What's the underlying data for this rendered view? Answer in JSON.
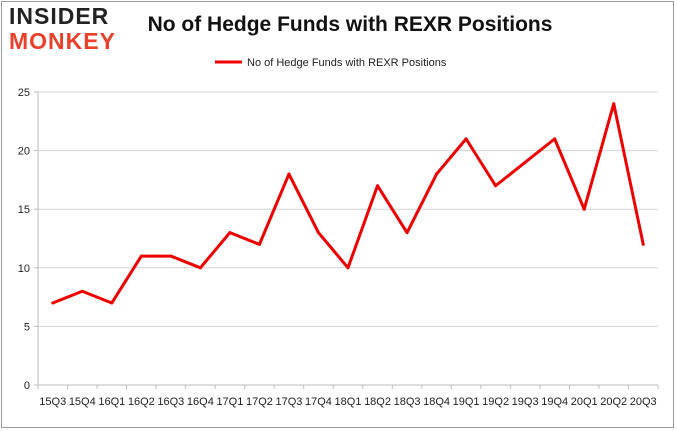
{
  "logo": {
    "line1": "INSIDER",
    "line2": "MONKEY"
  },
  "chart_data": {
    "type": "line",
    "title": "No of Hedge Funds with REXR Positions",
    "categories": [
      "15Q3",
      "15Q4",
      "16Q1",
      "16Q2",
      "16Q3",
      "16Q4",
      "17Q1",
      "17Q2",
      "17Q3",
      "17Q4",
      "18Q1",
      "18Q2",
      "18Q3",
      "18Q4",
      "19Q1",
      "19Q2",
      "19Q3",
      "19Q4",
      "20Q1",
      "20Q2",
      "20Q3"
    ],
    "series": [
      {
        "name": "No of Hedge Funds with REXR Positions",
        "values": [
          7,
          8,
          7,
          11,
          11,
          10,
          13,
          12,
          18,
          13,
          10,
          17,
          13,
          18,
          21,
          17,
          19,
          21,
          15,
          24,
          12
        ],
        "color": "#ee0000"
      }
    ],
    "ylim": [
      0,
      25
    ],
    "yticks": [
      0,
      5,
      10,
      15,
      20,
      25
    ],
    "grid": true,
    "legend_position": "top-center",
    "xlabel": "",
    "ylabel": ""
  }
}
